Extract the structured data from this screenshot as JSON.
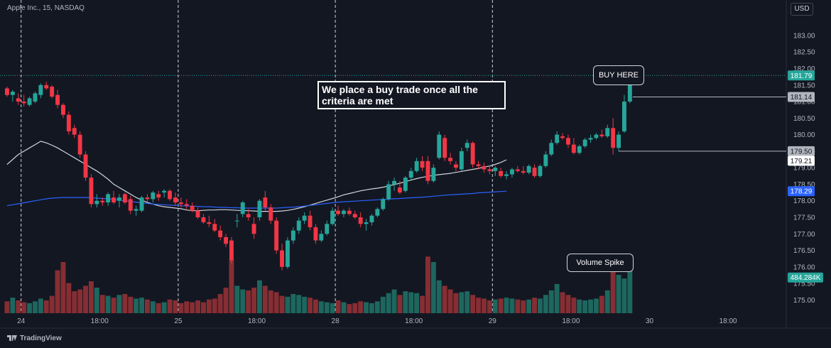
{
  "header": {
    "symbol": "Apple Inc., 15, NASDAQ",
    "currency": "USD"
  },
  "footer": {
    "brand": "TradingView"
  },
  "annotations": {
    "note": "We place a buy trade once all the criteria are met",
    "buy_callout": "BUY HERE",
    "volume_callout": "Volume Spike"
  },
  "colors": {
    "up": "#26a69a",
    "down": "#f23645",
    "ma_fast": "#d1d4dc",
    "ma_slow": "#2962ff",
    "background": "#131722"
  },
  "chart_data": {
    "type": "candlestick",
    "ylim": [
      174.6,
      183.6
    ],
    "y_ticks": [
      175.0,
      175.5,
      176.0,
      176.5,
      177.0,
      177.5,
      178.0,
      178.5,
      179.0,
      179.5,
      180.0,
      180.5,
      181.0,
      181.5,
      182.0,
      182.5,
      183.0
    ],
    "y_tick_labels": [
      "175.00",
      "175.50",
      "176.00",
      "176.50",
      "177.00",
      "177.50",
      "178.00",
      "178.50",
      "179.00",
      "179.50",
      "180.00",
      "180.50",
      "181.00",
      "181.50",
      "182.00",
      "182.50",
      "183.00"
    ],
    "x_labels": [
      {
        "label": "24",
        "bar": 2.5
      },
      {
        "label": "18:00",
        "bar": 16.5
      },
      {
        "label": "25",
        "bar": 30.5
      },
      {
        "label": "18:00",
        "bar": 44.5
      },
      {
        "label": "28",
        "bar": 58.5
      },
      {
        "label": "18:00",
        "bar": 72.5
      },
      {
        "label": "29",
        "bar": 86.5
      },
      {
        "label": "18:00",
        "bar": 100.5
      },
      {
        "label": "30",
        "bar": 114.5
      },
      {
        "label": "18:00",
        "bar": 128.5
      }
    ],
    "session_breaks": [
      2.5,
      30.5,
      58.5,
      86.5
    ],
    "volume_scale_max": 700,
    "price_labels": [
      {
        "label": "181.79",
        "value": 181.79,
        "color": "#26a69a"
      },
      {
        "label": "181.14",
        "value": 181.14,
        "color": "#b2b5be"
      },
      {
        "label": "179.50",
        "value": 179.5,
        "color": "#b2b5be"
      },
      {
        "label": "179.21",
        "value": 179.21,
        "color": "#ffffff"
      },
      {
        "label": "178.29",
        "value": 178.29,
        "color": "#2962ff"
      }
    ],
    "volume_label": {
      "label": "484.284K",
      "value": 484.284,
      "color": "#26a69a"
    },
    "ma_fast": {
      "start_bar": 0,
      "values": [
        179.1,
        179.25,
        179.4,
        179.5,
        179.6,
        179.7,
        179.8,
        179.75,
        179.68,
        179.6,
        179.5,
        179.4,
        179.3,
        179.2,
        179.1,
        179.0,
        178.9,
        178.78,
        178.65,
        178.5,
        178.4,
        178.3,
        178.2,
        178.1,
        178.02,
        177.95,
        177.9,
        177.85,
        177.82,
        177.8,
        177.78,
        177.76,
        177.72,
        177.7,
        177.7,
        177.71,
        177.72,
        177.72,
        177.73,
        177.73,
        177.72,
        177.71,
        177.7,
        177.7,
        177.69,
        177.68,
        177.68,
        177.68,
        177.68,
        177.69,
        177.71,
        177.74,
        177.78,
        177.82,
        177.87,
        177.92,
        177.97,
        178.02,
        178.07,
        178.12,
        178.18,
        178.22,
        178.26,
        178.3,
        178.33,
        178.36,
        178.38,
        178.41,
        178.45,
        178.49,
        178.53,
        178.58,
        178.63,
        178.67,
        178.71,
        178.74,
        178.77,
        178.79,
        178.81,
        178.83,
        178.86,
        178.89,
        178.92,
        178.95,
        178.98,
        179.02,
        179.05,
        179.1,
        179.16,
        179.24
      ]
    },
    "ma_slow": {
      "start_bar": 0,
      "values": [
        177.85,
        177.88,
        177.91,
        177.94,
        177.97,
        178.0,
        178.03,
        178.06,
        178.08,
        178.09,
        178.1,
        178.1,
        178.1,
        178.1,
        178.1,
        178.09,
        178.08,
        178.07,
        178.06,
        178.04,
        178.02,
        178.0,
        177.98,
        177.96,
        177.94,
        177.92,
        177.9,
        177.89,
        177.88,
        177.87,
        177.86,
        177.85,
        177.84,
        177.84,
        177.83,
        177.82,
        177.82,
        177.81,
        177.8,
        177.8,
        177.79,
        177.79,
        177.78,
        177.78,
        177.78,
        177.78,
        177.78,
        177.78,
        177.78,
        177.79,
        177.8,
        177.81,
        177.82,
        177.84,
        177.86,
        177.88,
        177.9,
        177.92,
        177.94,
        177.96,
        177.97,
        177.98,
        177.99,
        178.0,
        178.01,
        178.02,
        178.03,
        178.04,
        178.05,
        178.06,
        178.07,
        178.08,
        178.09,
        178.1,
        178.11,
        178.12,
        178.14,
        178.15,
        178.17,
        178.18,
        178.19,
        178.2,
        178.21,
        178.22,
        178.24,
        178.25,
        178.26,
        178.27,
        178.28,
        178.29
      ]
    },
    "candles": [
      {
        "o": 181.4,
        "h": 181.45,
        "l": 181.15,
        "c": 181.2,
        "v": 130
      },
      {
        "o": 181.2,
        "h": 181.35,
        "l": 181.0,
        "c": 181.3,
        "v": 170
      },
      {
        "o": 181.1,
        "h": 181.25,
        "l": 180.9,
        "c": 181.0,
        "v": 140
      },
      {
        "o": 181.0,
        "h": 181.2,
        "l": 180.85,
        "c": 180.95,
        "v": 120
      },
      {
        "o": 180.9,
        "h": 181.15,
        "l": 180.85,
        "c": 181.1,
        "v": 110
      },
      {
        "o": 181.0,
        "h": 181.3,
        "l": 180.95,
        "c": 181.25,
        "v": 130
      },
      {
        "o": 181.2,
        "h": 181.55,
        "l": 181.1,
        "c": 181.5,
        "v": 160
      },
      {
        "o": 181.5,
        "h": 181.6,
        "l": 181.35,
        "c": 181.4,
        "v": 140
      },
      {
        "o": 181.45,
        "h": 181.5,
        "l": 181.1,
        "c": 181.15,
        "v": 190
      },
      {
        "o": 181.2,
        "h": 181.35,
        "l": 180.8,
        "c": 180.9,
        "v": 470
      },
      {
        "o": 180.9,
        "h": 180.95,
        "l": 180.5,
        "c": 180.6,
        "v": 560
      },
      {
        "o": 180.6,
        "h": 180.7,
        "l": 180.0,
        "c": 180.1,
        "v": 330
      },
      {
        "o": 180.2,
        "h": 180.3,
        "l": 179.9,
        "c": 180.0,
        "v": 240
      },
      {
        "o": 180.0,
        "h": 180.1,
        "l": 179.3,
        "c": 179.4,
        "v": 260
      },
      {
        "o": 179.4,
        "h": 179.5,
        "l": 178.6,
        "c": 178.7,
        "v": 300
      },
      {
        "o": 178.7,
        "h": 178.8,
        "l": 177.8,
        "c": 177.9,
        "v": 350
      },
      {
        "o": 177.9,
        "h": 178.2,
        "l": 177.8,
        "c": 178.0,
        "v": 280
      },
      {
        "o": 178.0,
        "h": 178.1,
        "l": 177.85,
        "c": 177.95,
        "v": 200
      },
      {
        "o": 177.95,
        "h": 178.25,
        "l": 177.85,
        "c": 178.2,
        "v": 190
      },
      {
        "o": 178.1,
        "h": 178.3,
        "l": 177.9,
        "c": 177.95,
        "v": 170
      },
      {
        "o": 178.0,
        "h": 178.2,
        "l": 177.8,
        "c": 178.1,
        "v": 200
      },
      {
        "o": 178.2,
        "h": 178.25,
        "l": 177.9,
        "c": 177.95,
        "v": 210
      },
      {
        "o": 178.05,
        "h": 178.15,
        "l": 177.6,
        "c": 177.7,
        "v": 180
      },
      {
        "o": 177.7,
        "h": 177.85,
        "l": 177.55,
        "c": 177.75,
        "v": 160
      },
      {
        "o": 177.7,
        "h": 178.15,
        "l": 177.65,
        "c": 178.1,
        "v": 170
      },
      {
        "o": 178.1,
        "h": 178.2,
        "l": 177.95,
        "c": 178.05,
        "v": 150
      },
      {
        "o": 178.05,
        "h": 178.3,
        "l": 177.95,
        "c": 178.25,
        "v": 130
      },
      {
        "o": 178.2,
        "h": 178.3,
        "l": 178.0,
        "c": 178.1,
        "v": 110
      },
      {
        "o": 178.25,
        "h": 178.35,
        "l": 178.1,
        "c": 178.3,
        "v": 120
      },
      {
        "o": 178.3,
        "h": 178.35,
        "l": 178.0,
        "c": 178.05,
        "v": 150
      },
      {
        "o": 178.1,
        "h": 178.25,
        "l": 177.85,
        "c": 177.95,
        "v": 140
      },
      {
        "o": 177.95,
        "h": 178.1,
        "l": 177.8,
        "c": 177.9,
        "v": 110
      },
      {
        "o": 177.9,
        "h": 178.05,
        "l": 177.75,
        "c": 177.85,
        "v": 130
      },
      {
        "o": 177.85,
        "h": 177.95,
        "l": 177.65,
        "c": 177.7,
        "v": 120
      },
      {
        "o": 177.7,
        "h": 177.8,
        "l": 177.45,
        "c": 177.5,
        "v": 140
      },
      {
        "o": 177.5,
        "h": 177.6,
        "l": 177.3,
        "c": 177.35,
        "v": 120
      },
      {
        "o": 177.35,
        "h": 177.55,
        "l": 177.2,
        "c": 177.3,
        "v": 150
      },
      {
        "o": 177.3,
        "h": 177.45,
        "l": 177.05,
        "c": 177.1,
        "v": 160
      },
      {
        "o": 177.1,
        "h": 177.25,
        "l": 176.8,
        "c": 176.9,
        "v": 210
      },
      {
        "o": 176.9,
        "h": 177.0,
        "l": 176.6,
        "c": 176.7,
        "v": 280
      },
      {
        "o": 176.8,
        "h": 176.9,
        "l": 176.1,
        "c": 176.2,
        "v": 590
      },
      {
        "o": 177.4,
        "h": 177.6,
        "l": 177.2,
        "c": 177.4,
        "v": 300
      },
      {
        "o": 177.6,
        "h": 178.0,
        "l": 177.5,
        "c": 177.95,
        "v": 260
      },
      {
        "o": 177.6,
        "h": 177.75,
        "l": 177.4,
        "c": 177.5,
        "v": 250
      },
      {
        "o": 177.3,
        "h": 177.5,
        "l": 176.85,
        "c": 177.0,
        "v": 280
      },
      {
        "o": 177.5,
        "h": 178.05,
        "l": 177.4,
        "c": 178.0,
        "v": 360
      },
      {
        "o": 178.1,
        "h": 178.3,
        "l": 177.7,
        "c": 177.8,
        "v": 300
      },
      {
        "o": 177.8,
        "h": 177.9,
        "l": 177.3,
        "c": 177.4,
        "v": 250
      },
      {
        "o": 177.4,
        "h": 177.5,
        "l": 176.4,
        "c": 176.5,
        "v": 230
      },
      {
        "o": 176.5,
        "h": 176.7,
        "l": 175.9,
        "c": 176.0,
        "v": 190
      },
      {
        "o": 176.0,
        "h": 176.9,
        "l": 175.95,
        "c": 176.8,
        "v": 180
      },
      {
        "o": 176.8,
        "h": 177.2,
        "l": 176.7,
        "c": 177.1,
        "v": 210
      },
      {
        "o": 177.1,
        "h": 177.5,
        "l": 177.0,
        "c": 177.4,
        "v": 200
      },
      {
        "o": 177.4,
        "h": 177.65,
        "l": 177.3,
        "c": 177.55,
        "v": 180
      },
      {
        "o": 177.55,
        "h": 177.7,
        "l": 177.1,
        "c": 177.2,
        "v": 170
      },
      {
        "o": 177.2,
        "h": 177.3,
        "l": 176.7,
        "c": 176.8,
        "v": 150
      },
      {
        "o": 176.8,
        "h": 177.1,
        "l": 176.75,
        "c": 177.0,
        "v": 130
      },
      {
        "o": 177.0,
        "h": 177.4,
        "l": 176.95,
        "c": 177.3,
        "v": 120
      },
      {
        "o": 177.3,
        "h": 177.8,
        "l": 177.25,
        "c": 177.7,
        "v": 110
      },
      {
        "o": 177.7,
        "h": 177.85,
        "l": 177.55,
        "c": 177.6,
        "v": 140
      },
      {
        "o": 177.6,
        "h": 177.75,
        "l": 177.5,
        "c": 177.7,
        "v": 120
      },
      {
        "o": 177.7,
        "h": 177.8,
        "l": 177.55,
        "c": 177.6,
        "v": 100
      },
      {
        "o": 177.6,
        "h": 177.7,
        "l": 177.45,
        "c": 177.5,
        "v": 110
      },
      {
        "o": 177.5,
        "h": 177.65,
        "l": 177.2,
        "c": 177.3,
        "v": 130
      },
      {
        "o": 177.3,
        "h": 177.45,
        "l": 177.1,
        "c": 177.35,
        "v": 120
      },
      {
        "o": 177.35,
        "h": 177.6,
        "l": 177.25,
        "c": 177.55,
        "v": 110
      },
      {
        "o": 177.55,
        "h": 177.8,
        "l": 177.5,
        "c": 177.75,
        "v": 130
      },
      {
        "o": 177.75,
        "h": 178.1,
        "l": 177.7,
        "c": 178.05,
        "v": 180
      },
      {
        "o": 178.05,
        "h": 178.6,
        "l": 178.0,
        "c": 178.5,
        "v": 220
      },
      {
        "o": 178.5,
        "h": 178.7,
        "l": 178.3,
        "c": 178.6,
        "v": 260
      },
      {
        "o": 178.4,
        "h": 178.6,
        "l": 178.2,
        "c": 178.25,
        "v": 200
      },
      {
        "o": 178.3,
        "h": 178.75,
        "l": 178.25,
        "c": 178.7,
        "v": 240
      },
      {
        "o": 178.7,
        "h": 179.0,
        "l": 178.6,
        "c": 178.9,
        "v": 230
      },
      {
        "o": 178.9,
        "h": 179.3,
        "l": 178.85,
        "c": 179.2,
        "v": 220
      },
      {
        "o": 179.2,
        "h": 179.35,
        "l": 178.9,
        "c": 179.0,
        "v": 190
      },
      {
        "o": 179.2,
        "h": 179.35,
        "l": 178.5,
        "c": 178.6,
        "v": 620
      },
      {
        "o": 178.6,
        "h": 179.1,
        "l": 178.55,
        "c": 179.0,
        "v": 560
      },
      {
        "o": 179.3,
        "h": 180.1,
        "l": 179.25,
        "c": 180.0,
        "v": 360
      },
      {
        "o": 179.9,
        "h": 180.0,
        "l": 179.2,
        "c": 179.3,
        "v": 300
      },
      {
        "o": 179.3,
        "h": 179.45,
        "l": 179.1,
        "c": 179.2,
        "v": 260
      },
      {
        "o": 179.1,
        "h": 179.2,
        "l": 178.9,
        "c": 179.0,
        "v": 220
      },
      {
        "o": 178.95,
        "h": 179.6,
        "l": 178.9,
        "c": 179.5,
        "v": 230
      },
      {
        "o": 179.6,
        "h": 179.85,
        "l": 179.5,
        "c": 179.75,
        "v": 240
      },
      {
        "o": 179.75,
        "h": 179.8,
        "l": 179.0,
        "c": 179.1,
        "v": 200
      },
      {
        "o": 179.1,
        "h": 179.2,
        "l": 178.95,
        "c": 179.05,
        "v": 170
      },
      {
        "o": 179.05,
        "h": 179.15,
        "l": 178.85,
        "c": 178.95,
        "v": 160
      },
      {
        "o": 178.95,
        "h": 179.05,
        "l": 178.8,
        "c": 178.9,
        "v": 140
      },
      {
        "o": 178.9,
        "h": 179.05,
        "l": 178.75,
        "c": 179.0,
        "v": 150
      },
      {
        "o": 178.9,
        "h": 179.0,
        "l": 178.7,
        "c": 178.75,
        "v": 160
      },
      {
        "o": 178.75,
        "h": 178.9,
        "l": 178.65,
        "c": 178.8,
        "v": 170
      },
      {
        "o": 178.8,
        "h": 179.0,
        "l": 178.7,
        "c": 178.95,
        "v": 160
      },
      {
        "o": 178.95,
        "h": 179.05,
        "l": 178.85,
        "c": 178.9,
        "v": 150
      },
      {
        "o": 178.9,
        "h": 179.05,
        "l": 178.8,
        "c": 178.85,
        "v": 140
      },
      {
        "o": 178.85,
        "h": 179.1,
        "l": 178.8,
        "c": 179.05,
        "v": 150
      },
      {
        "o": 179.0,
        "h": 179.1,
        "l": 178.7,
        "c": 178.75,
        "v": 170
      },
      {
        "o": 178.75,
        "h": 179.1,
        "l": 178.7,
        "c": 179.05,
        "v": 160
      },
      {
        "o": 179.05,
        "h": 179.5,
        "l": 179.0,
        "c": 179.4,
        "v": 200
      },
      {
        "o": 179.4,
        "h": 179.85,
        "l": 179.35,
        "c": 179.75,
        "v": 250
      },
      {
        "o": 179.75,
        "h": 180.1,
        "l": 179.7,
        "c": 180.0,
        "v": 320
      },
      {
        "o": 179.95,
        "h": 180.05,
        "l": 179.85,
        "c": 179.9,
        "v": 230
      },
      {
        "o": 179.9,
        "h": 180.0,
        "l": 179.6,
        "c": 179.7,
        "v": 200
      },
      {
        "o": 179.7,
        "h": 179.9,
        "l": 179.4,
        "c": 179.45,
        "v": 170
      },
      {
        "o": 179.45,
        "h": 179.7,
        "l": 179.4,
        "c": 179.65,
        "v": 150
      },
      {
        "o": 179.65,
        "h": 179.9,
        "l": 179.6,
        "c": 179.85,
        "v": 140
      },
      {
        "o": 179.85,
        "h": 180.0,
        "l": 179.75,
        "c": 179.9,
        "v": 150
      },
      {
        "o": 179.9,
        "h": 180.05,
        "l": 179.85,
        "c": 180.0,
        "v": 160
      },
      {
        "o": 180.0,
        "h": 180.15,
        "l": 179.9,
        "c": 179.95,
        "v": 190
      },
      {
        "o": 179.95,
        "h": 180.3,
        "l": 179.9,
        "c": 180.2,
        "v": 250
      },
      {
        "o": 180.2,
        "h": 180.5,
        "l": 179.4,
        "c": 179.6,
        "v": 620
      },
      {
        "o": 179.6,
        "h": 180.1,
        "l": 179.5,
        "c": 180.0,
        "v": 420
      },
      {
        "o": 180.1,
        "h": 181.2,
        "l": 180.05,
        "c": 181.0,
        "v": 380
      },
      {
        "o": 181.0,
        "h": 181.85,
        "l": 180.95,
        "c": 181.79,
        "v": 484.284
      }
    ]
  }
}
